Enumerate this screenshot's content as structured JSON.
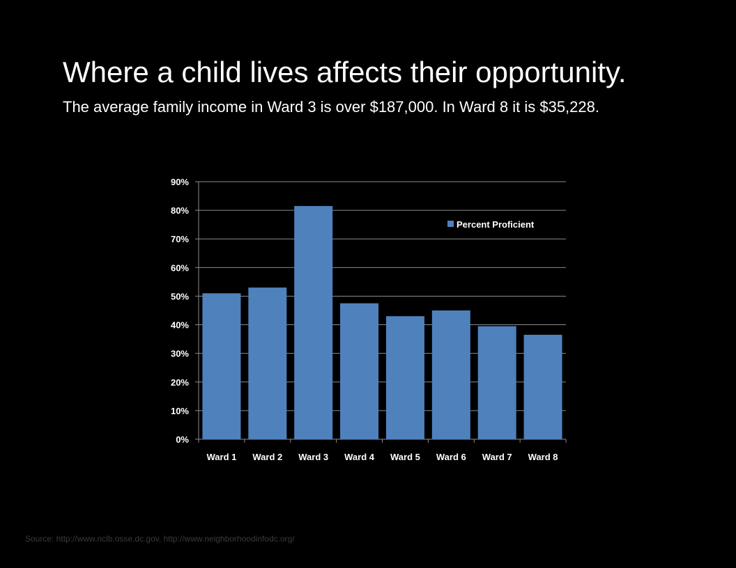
{
  "slide": {
    "title": "Where a child lives affects their opportunity.",
    "subtitle": "The average family income in Ward 3 is over $187,000.  In Ward 8 it is $35,228.",
    "source": "Source: http://www.nclb.osse.dc.gov, http://www.neighborhoodinfodc.org/"
  },
  "colors": {
    "background": "#000000",
    "bar": "#4f81bd",
    "gridline": "#8c8c8c",
    "text": "#ffffff"
  },
  "chart_data": {
    "type": "bar",
    "title": "",
    "xlabel": "",
    "ylabel": "",
    "categories": [
      "Ward 1",
      "Ward 2",
      "Ward 3",
      "Ward 4",
      "Ward 5",
      "Ward 6",
      "Ward 7",
      "Ward 8"
    ],
    "series": [
      {
        "name": "Percent Proficient",
        "values": [
          51,
          53,
          81.5,
          47.5,
          43,
          45,
          39.5,
          36.5
        ]
      }
    ],
    "ylim": [
      0,
      90
    ],
    "yticks": [
      0,
      10,
      20,
      30,
      40,
      50,
      60,
      70,
      80,
      90
    ],
    "ytick_labels": [
      "0%",
      "10%",
      "20%",
      "30%",
      "40%",
      "50%",
      "60%",
      "70%",
      "80%",
      "90%"
    ],
    "grid": true,
    "legend": "top-right"
  }
}
